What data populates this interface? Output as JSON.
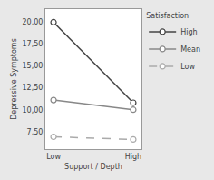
{
  "chart_data": {
    "type": "line",
    "xlabel": "Support / Depth",
    "ylabel": "Depressive Symptoms",
    "categories": [
      "Low",
      "High"
    ],
    "series": [
      {
        "name": "High",
        "color": "#444444",
        "values": [
          20.0,
          10.8
        ],
        "marker": "circle",
        "line_style": "solid"
      },
      {
        "name": "Mean",
        "color": "#888888",
        "values": [
          11.1,
          10.0
        ],
        "marker": "circle",
        "line_style": "solid"
      },
      {
        "name": "Low",
        "color": "#aaaaaa",
        "values": [
          6.9,
          6.6
        ],
        "marker": "circle",
        "line_style": "dashed"
      }
    ],
    "legend_title": "Satisfaction",
    "legend": "right",
    "ylim": [
      5.5,
      21.5
    ],
    "yticks": [
      {
        "value": 7.5,
        "label": "7,50"
      },
      {
        "value": 10.0,
        "label": "10,00"
      },
      {
        "value": 12.5,
        "label": "12,50"
      },
      {
        "value": 15.0,
        "label": "15,00"
      },
      {
        "value": 17.5,
        "label": "17,50"
      },
      {
        "value": 20.0,
        "label": "20,00"
      }
    ],
    "grid": false
  }
}
